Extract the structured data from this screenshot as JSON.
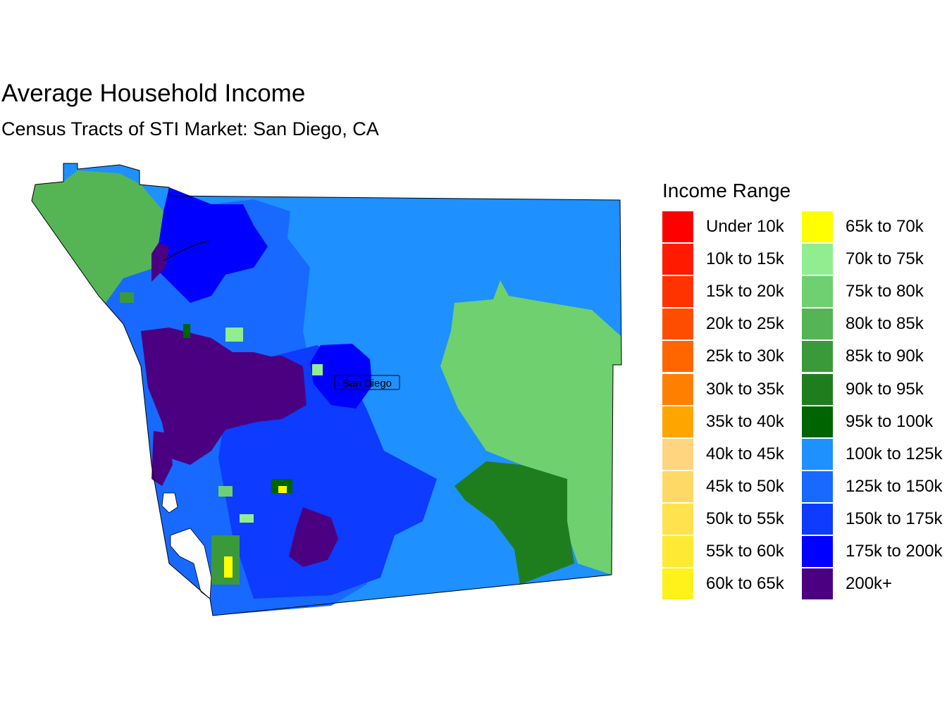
{
  "title": "Average Household Income",
  "subtitle": "Census Tracts of STI Market: San Diego, CA",
  "legend": {
    "title": "Income Range",
    "items": [
      {
        "label": "Under 10k",
        "color": "#FF0000"
      },
      {
        "label": "10k to 15k",
        "color": "#FF1A00"
      },
      {
        "label": "15k to 20k",
        "color": "#FF3300"
      },
      {
        "label": "20k to 25k",
        "color": "#FF4D00"
      },
      {
        "label": "25k to 30k",
        "color": "#FF6600"
      },
      {
        "label": "30k to 35k",
        "color": "#FF8000"
      },
      {
        "label": "35k to 40k",
        "color": "#FFA500"
      },
      {
        "label": "40k to 45k",
        "color": "#FFD580"
      },
      {
        "label": "45k to 50k",
        "color": "#FFD966"
      },
      {
        "label": "50k to 55k",
        "color": "#FFE24D"
      },
      {
        "label": "55k to 60k",
        "color": "#FFEA33"
      },
      {
        "label": "60k to 65k",
        "color": "#FFF21A"
      },
      {
        "label": "65k to 70k",
        "color": "#FFFF00"
      },
      {
        "label": "70k to 75k",
        "color": "#90EE90"
      },
      {
        "label": "75k to 80k",
        "color": "#6FD06F"
      },
      {
        "label": "80k to 85k",
        "color": "#55B555"
      },
      {
        "label": "85k to 90k",
        "color": "#3A9A3A"
      },
      {
        "label": "90k to 95k",
        "color": "#1E7E1E"
      },
      {
        "label": "95k to 100k",
        "color": "#006400"
      },
      {
        "label": "100k to 125k",
        "color": "#1E90FF"
      },
      {
        "label": "125k to 150k",
        "color": "#1769FF"
      },
      {
        "label": "150k to 175k",
        "color": "#0D3BFF"
      },
      {
        "label": "175k to 200k",
        "color": "#0000FF"
      },
      {
        "label": "200k+",
        "color": "#4B0082"
      }
    ]
  },
  "map": {
    "city_label": "San Diego"
  }
}
